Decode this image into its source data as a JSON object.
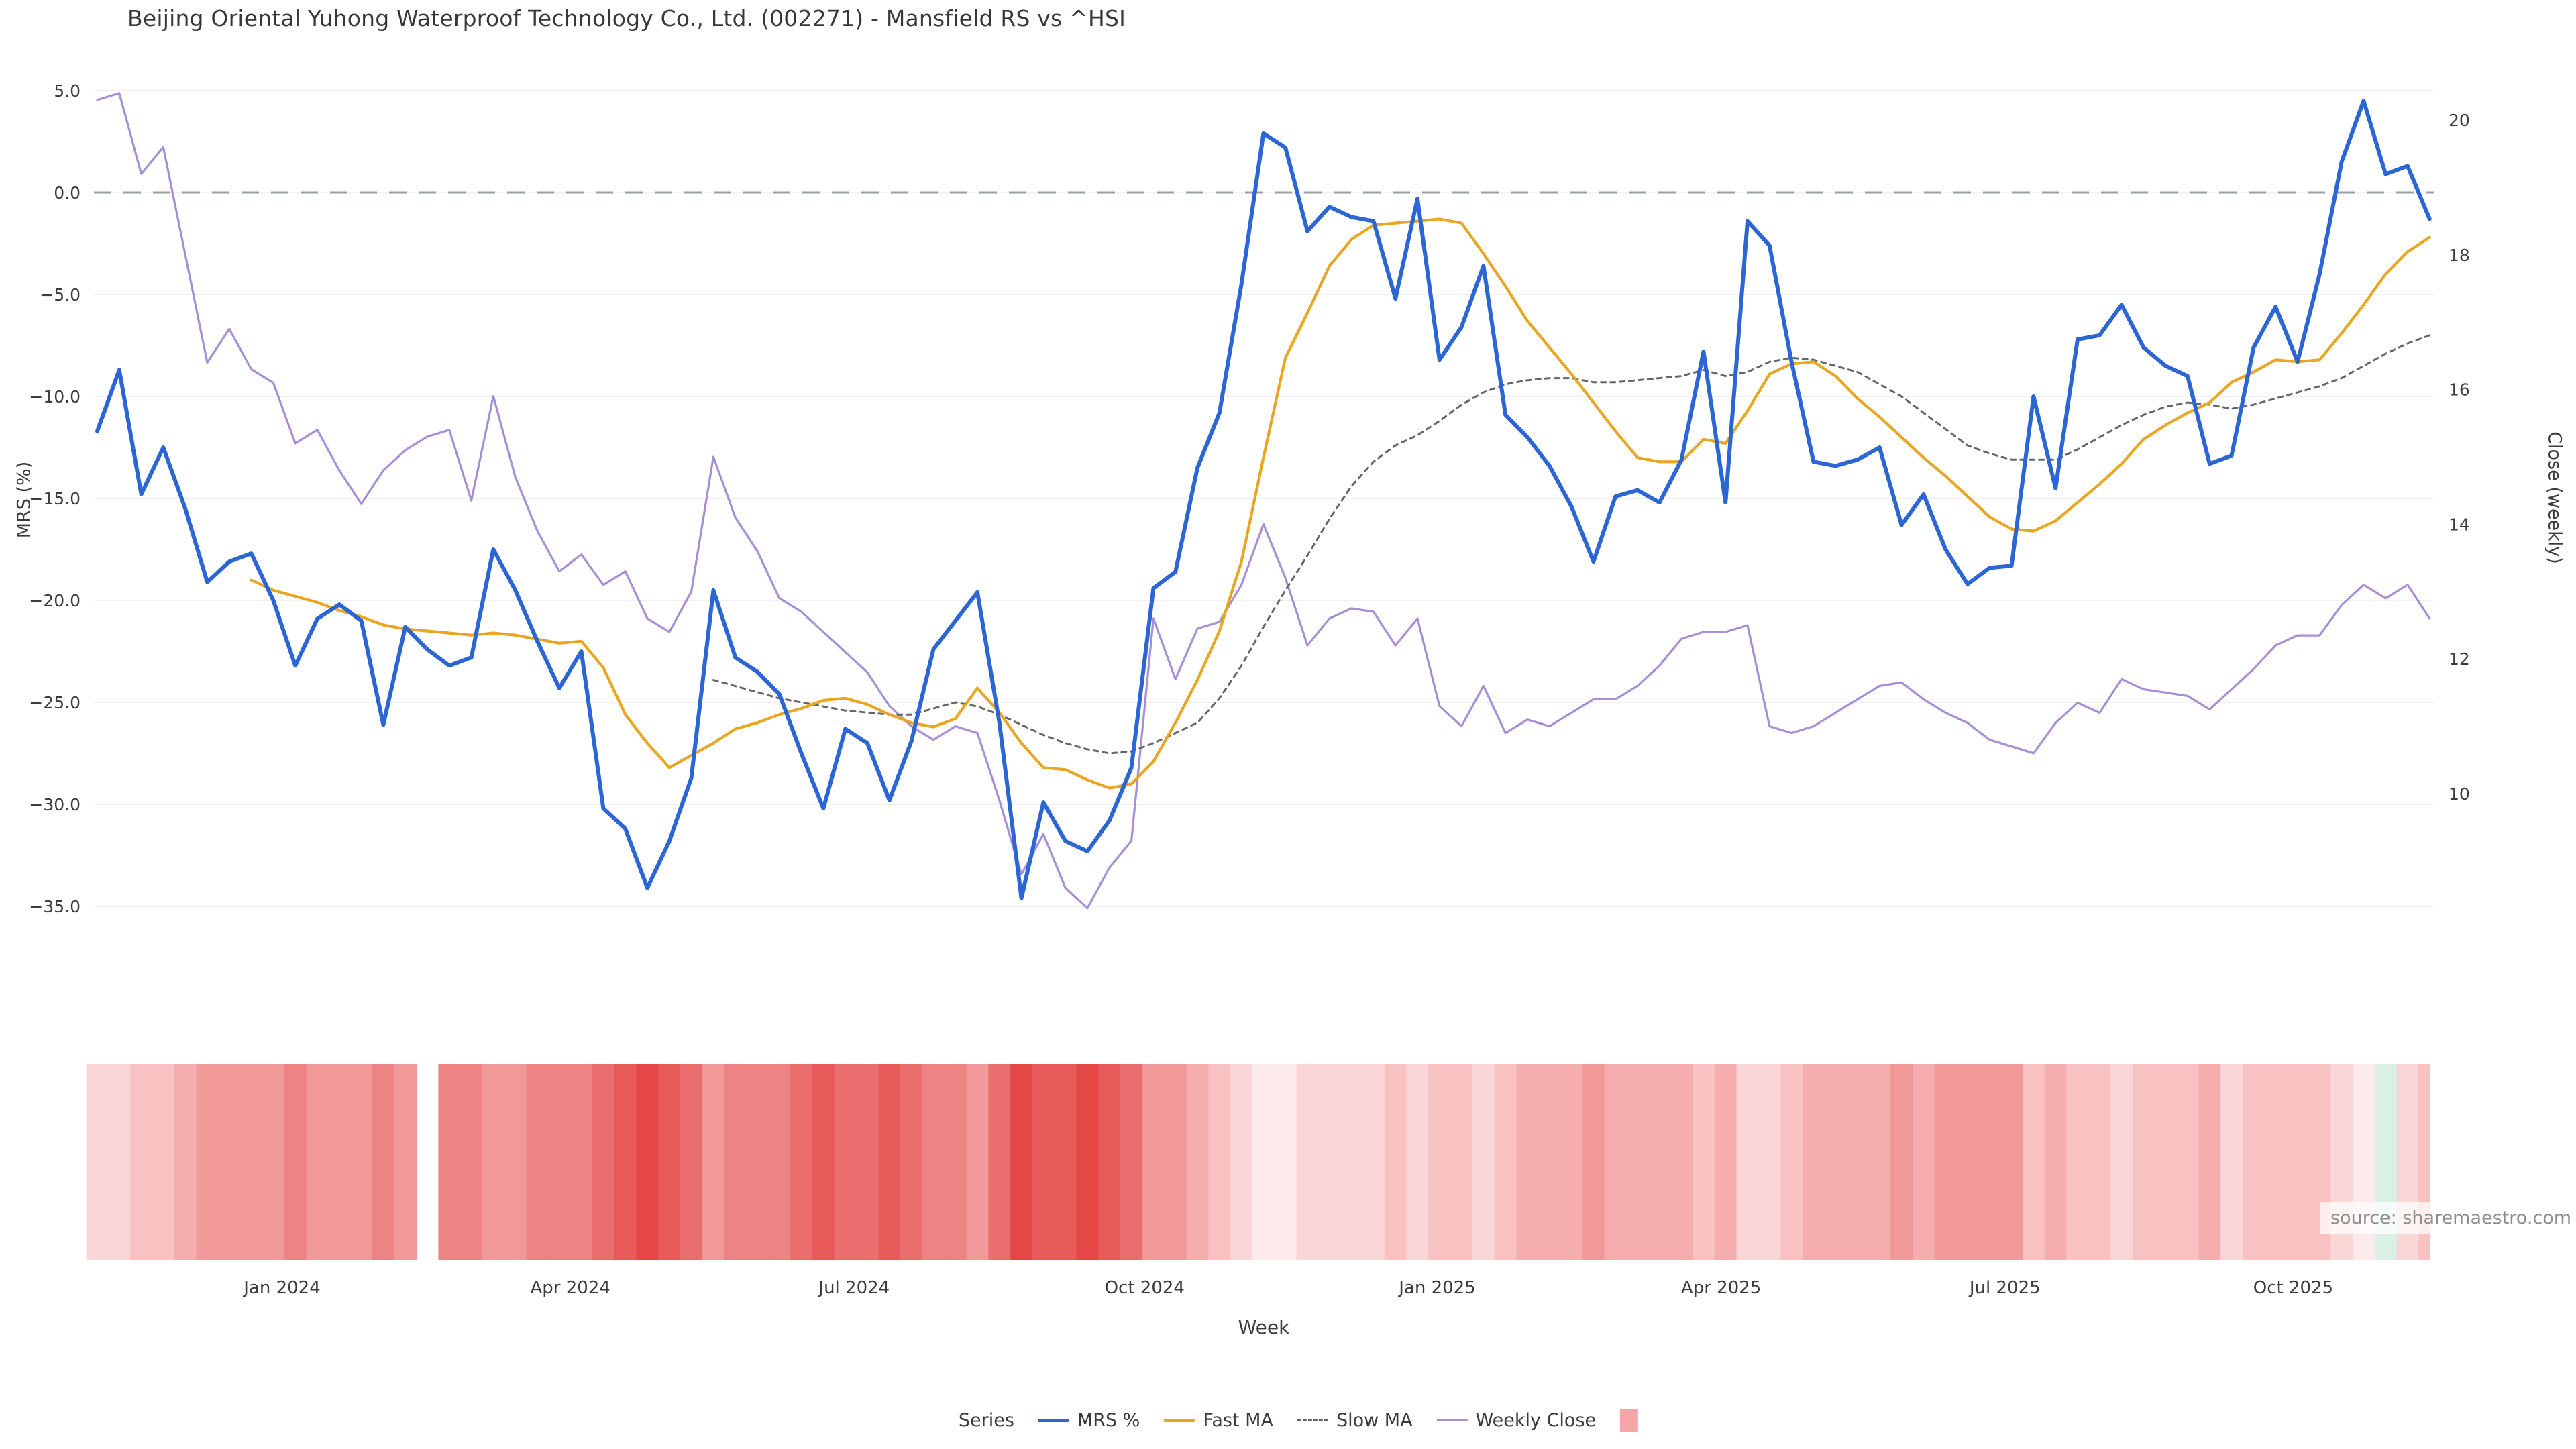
{
  "title": "Beijing Oriental Yuhong Waterproof Technology Co., Ltd. (002271) - Mansfield RS vs ^HSI",
  "source": "source: sharemaestro.com",
  "legend": {
    "title": "Series",
    "items": [
      {
        "label": "MRS %"
      },
      {
        "label": "Fast MA"
      },
      {
        "label": "Slow MA"
      },
      {
        "label": "Weekly Close"
      },
      {
        "label": ""
      }
    ]
  },
  "chart_data": {
    "type": "line",
    "title": "Beijing Oriental Yuhong Waterproof Technology Co., Ltd. (002271) - Mansfield RS vs ^HSI",
    "xlabel": "Week",
    "grid": true,
    "zero_line_left": 0,
    "y_left": {
      "label": "MRS (%)",
      "lim": [
        -35,
        5
      ],
      "ticks": [
        {
          "t": "5.0",
          "v": 5
        },
        {
          "t": "0.0",
          "v": 0
        },
        {
          "t": "−5.0",
          "v": -5
        },
        {
          "t": "−10.0",
          "v": -10
        },
        {
          "t": "−15.0",
          "v": -15
        },
        {
          "t": "−20.0",
          "v": -20
        },
        {
          "t": "−25.0",
          "v": -25
        },
        {
          "t": "−30.0",
          "v": -30
        },
        {
          "t": "−35.0",
          "v": -35
        }
      ]
    },
    "y_right": {
      "label": "Close (weekly)",
      "lim": [
        8,
        20.5
      ],
      "ticks": [
        {
          "t": "20",
          "v": 20
        },
        {
          "t": "18",
          "v": 18
        },
        {
          "t": "16",
          "v": 16
        },
        {
          "t": "14",
          "v": 14
        },
        {
          "t": "12",
          "v": 12
        },
        {
          "t": "10",
          "v": 10
        }
      ]
    },
    "x_ticks": [
      {
        "label": "Jan 2024",
        "week": 8.4
      },
      {
        "label": "Apr 2024",
        "week": 21.5
      },
      {
        "label": "Jul 2024",
        "week": 34.4
      },
      {
        "label": "Oct 2024",
        "week": 47.6
      },
      {
        "label": "Jan 2025",
        "week": 60.9
      },
      {
        "label": "Apr 2025",
        "week": 73.8
      },
      {
        "label": "Jul 2025",
        "week": 86.7
      },
      {
        "label": "Oct 2025",
        "week": 99.8
      }
    ],
    "series": [
      {
        "name": "Weekly Close",
        "axis": "right",
        "color": "#a78fd8",
        "width": 3.2,
        "style": "solid",
        "start_week": 0,
        "values": [
          20.3,
          20.4,
          19.2,
          19.6,
          18.0,
          16.4,
          16.9,
          16.3,
          16.1,
          15.2,
          15.4,
          14.8,
          14.3,
          14.8,
          15.1,
          15.3,
          15.4,
          14.35,
          15.9,
          14.7,
          13.9,
          13.3,
          13.55,
          13.1,
          13.3,
          12.6,
          12.4,
          13.0,
          15.0,
          14.1,
          13.6,
          12.9,
          12.7,
          12.4,
          12.1,
          11.8,
          11.3,
          11.0,
          10.8,
          11.0,
          10.9,
          9.9,
          8.8,
          9.4,
          8.6,
          8.3,
          8.9,
          9.3,
          12.6,
          11.7,
          12.45,
          12.55,
          13.1,
          14.0,
          13.2,
          12.2,
          12.6,
          12.75,
          12.7,
          12.2,
          12.6,
          11.3,
          11.0,
          11.6,
          10.9,
          11.1,
          11.0,
          11.2,
          11.4,
          11.4,
          11.6,
          11.9,
          12.3,
          12.4,
          12.4,
          12.5,
          11.0,
          10.9,
          11.0,
          11.2,
          11.4,
          11.6,
          11.65,
          11.4,
          11.2,
          11.05,
          10.8,
          10.7,
          10.6,
          11.05,
          11.35,
          11.2,
          11.7,
          11.55,
          11.5,
          11.45,
          11.25,
          11.55,
          11.85,
          12.2,
          12.35,
          12.35,
          12.8,
          13.1,
          12.9,
          13.1,
          12.6
        ]
      },
      {
        "name": "Slow MA",
        "axis": "left",
        "color": "#666666",
        "width": 3,
        "style": "dashed-fine",
        "start_week": 28,
        "values": [
          -23.9,
          -24.2,
          -24.5,
          -24.8,
          -25.0,
          -25.2,
          -25.4,
          -25.5,
          -25.6,
          -25.6,
          -25.3,
          -25.0,
          -25.2,
          -25.6,
          -26.1,
          -26.6,
          -27.0,
          -27.3,
          -27.5,
          -27.4,
          -27.0,
          -26.5,
          -26.0,
          -24.8,
          -23.2,
          -21.3,
          -19.5,
          -17.8,
          -16.0,
          -14.4,
          -13.2,
          -12.4,
          -11.9,
          -11.2,
          -10.4,
          -9.8,
          -9.4,
          -9.2,
          -9.1,
          -9.1,
          -9.3,
          -9.3,
          -9.2,
          -9.1,
          -9.0,
          -8.7,
          -9.0,
          -8.8,
          -8.3,
          -8.1,
          -8.2,
          -8.5,
          -8.8,
          -9.4,
          -10.0,
          -10.8,
          -11.6,
          -12.4,
          -12.8,
          -13.1,
          -13.1,
          -13.1,
          -12.6,
          -12.0,
          -11.4,
          -10.9,
          -10.5,
          -10.3,
          -10.4,
          -10.6,
          -10.4,
          -10.1,
          -9.8,
          -9.5,
          -9.1,
          -8.5,
          -7.9,
          -7.4,
          -7.0
        ]
      },
      {
        "name": "Fast MA",
        "axis": "left",
        "color": "#e9a623",
        "width": 4.2,
        "style": "solid",
        "start_week": 7,
        "values": [
          -19.0,
          -19.5,
          -19.8,
          -20.1,
          -20.5,
          -20.8,
          -21.2,
          -21.4,
          -21.5,
          -21.6,
          -21.7,
          -21.6,
          -21.7,
          -21.9,
          -22.1,
          -22.0,
          -23.3,
          -25.6,
          -27.0,
          -28.2,
          -27.6,
          -27.0,
          -26.3,
          -26.0,
          -25.6,
          -25.3,
          -24.9,
          -24.8,
          -25.1,
          -25.6,
          -26.0,
          -26.2,
          -25.8,
          -24.3,
          -25.5,
          -27.0,
          -28.2,
          -28.3,
          -28.8,
          -29.2,
          -29.0,
          -27.9,
          -26.0,
          -23.9,
          -21.5,
          -18.1,
          -13.0,
          -8.1,
          -5.9,
          -3.6,
          -2.3,
          -1.6,
          -1.5,
          -1.4,
          -1.3,
          -1.5,
          -3.0,
          -4.6,
          -6.3,
          -7.6,
          -8.9,
          -10.3,
          -11.7,
          -13.0,
          -13.2,
          -13.2,
          -12.1,
          -12.3,
          -10.7,
          -8.9,
          -8.4,
          -8.3,
          -9.0,
          -10.1,
          -11.0,
          -12.0,
          -13.0,
          -13.9,
          -14.9,
          -15.9,
          -16.5,
          -16.6,
          -16.1,
          -15.2,
          -14.3,
          -13.3,
          -12.1,
          -11.4,
          -10.8,
          -10.3,
          -9.3,
          -8.8,
          -8.2,
          -8.3,
          -8.2,
          -6.9,
          -5.5,
          -4.0,
          -2.9,
          -2.2
        ]
      },
      {
        "name": "MRS %",
        "axis": "left",
        "color": "#2b66d4",
        "width": 6,
        "style": "solid",
        "start_week": 0,
        "values": [
          -11.7,
          -8.7,
          -14.8,
          -12.5,
          -15.5,
          -19.1,
          -18.1,
          -17.7,
          -20.0,
          -23.2,
          -20.9,
          -20.2,
          -21.0,
          -26.1,
          -21.3,
          -22.4,
          -23.2,
          -22.8,
          -17.5,
          -19.5,
          -22.0,
          -24.3,
          -22.5,
          -30.2,
          -31.2,
          -34.1,
          -31.8,
          -28.7,
          -19.5,
          -22.8,
          -23.5,
          -24.6,
          -27.5,
          -30.2,
          -26.3,
          -27.0,
          -29.8,
          -26.9,
          -22.4,
          -21.0,
          -19.6,
          -26.0,
          -34.6,
          -29.9,
          -31.8,
          -32.3,
          -30.8,
          -28.2,
          -19.4,
          -18.6,
          -13.5,
          -10.8,
          -4.5,
          2.9,
          2.2,
          -1.9,
          -0.7,
          -1.2,
          -1.4,
          -5.2,
          -0.3,
          -8.2,
          -6.6,
          -3.6,
          -10.9,
          -12.0,
          -13.4,
          -15.4,
          -18.1,
          -14.9,
          -14.6,
          -15.2,
          -13.1,
          -7.8,
          -15.2,
          -1.4,
          -2.6,
          -8.3,
          -13.2,
          -13.4,
          -13.1,
          -12.5,
          -16.3,
          -14.8,
          -17.5,
          -19.2,
          -18.4,
          -18.3,
          -10.0,
          -14.5,
          -7.2,
          -7.0,
          -5.5,
          -7.6,
          -8.5,
          -9.0,
          -13.3,
          -12.9,
          -7.6,
          -5.6,
          -8.3,
          -4.0,
          1.5,
          4.5,
          0.9,
          1.3,
          -1.3
        ]
      }
    ],
    "heatmap": {
      "legend_color": "#f4a5a8",
      "colors": [
        "#fbd6d6",
        "#fbd6d6",
        "#f8c2c2",
        "#f8c2c2",
        "#f5adad",
        "#f19898",
        "#f19898",
        "#f19898",
        "#f19898",
        "#ee8383",
        "#f19898",
        "#f19898",
        "#f19898",
        "#ee8383",
        "#f19898",
        null,
        "#ee8383",
        "#ee8383",
        "#f19898",
        "#f19898",
        "#ee8383",
        "#ee8383",
        "#ee8383",
        "#eb6e6e",
        "#e85a5a",
        "#e54646",
        "#e85a5a",
        "#eb6e6e",
        "#f19898",
        "#ee8383",
        "#ee8383",
        "#ee8383",
        "#eb6e6e",
        "#e85a5a",
        "#eb6e6e",
        "#eb6e6e",
        "#e85a5a",
        "#eb6e6e",
        "#ee8383",
        "#ee8383",
        "#f19898",
        "#eb6e6e",
        "#e54646",
        "#e85a5a",
        "#e85a5a",
        "#e54646",
        "#e85a5a",
        "#eb6e6e",
        "#f19898",
        "#f19898",
        "#f5adad",
        "#f8c2c2",
        "#fbd6d6",
        "#fdeaea",
        "#fdeaea",
        "#fbd6d6",
        "#fbd6d6",
        "#fbd6d6",
        "#fbd6d6",
        "#f8c2c2",
        "#fbd6d6",
        "#f8c2c2",
        "#f8c2c2",
        "#fbd6d6",
        "#f8c2c2",
        "#f5adad",
        "#f5adad",
        "#f5adad",
        "#f19898",
        "#f5adad",
        "#f5adad",
        "#f5adad",
        "#f5adad",
        "#f8c2c2",
        "#f5adad",
        "#fbd6d6",
        "#fbd6d6",
        "#f8c2c2",
        "#f5adad",
        "#f5adad",
        "#f5adad",
        "#f5adad",
        "#f19898",
        "#f5adad",
        "#f19898",
        "#f19898",
        "#f19898",
        "#f19898",
        "#f8c2c2",
        "#f5adad",
        "#f8c2c2",
        "#f8c2c2",
        "#fbd6d6",
        "#f8c2c2",
        "#f8c2c2",
        "#f8c2c2",
        "#f5adad",
        "#fbd6d6",
        "#f8c2c2",
        "#f8c2c2",
        "#f8c2c2",
        "#f8c2c2",
        "#fbd6d6",
        "#fdeaea",
        "#d9f0e5",
        "#fbd6d6",
        "#f8c2c2"
      ]
    },
    "colors": {
      "grid": "#efeff4",
      "zero_line": "#9aa0a6",
      "tick_text": "#3c3c3c",
      "background": "#ffffff"
    }
  }
}
